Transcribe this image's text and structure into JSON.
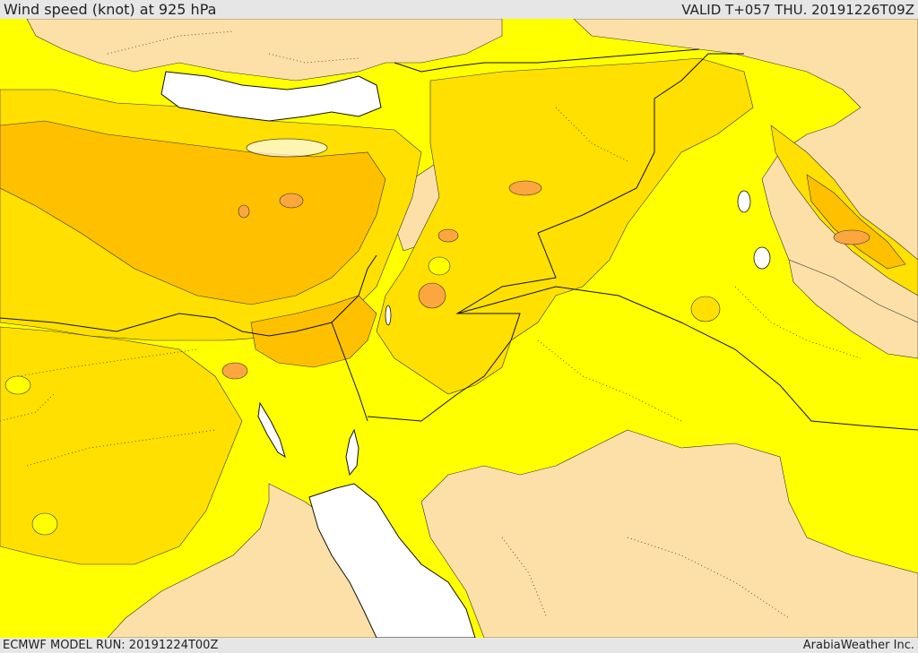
{
  "header": {
    "title": "Wind speed (knot) at 925 hPa",
    "valid": "VALID T+057 THU. 20191226T09Z"
  },
  "footer": {
    "model_run": "ECMWF MODEL RUN: 20191224T00Z",
    "credit": "ArabiaWeather Inc."
  },
  "colors": {
    "bar_background": "#e6e6e6",
    "sea_white": "#ffffff",
    "light_tan": "#fde0a8",
    "yellow": "#ffff00",
    "golden": "#ffe000",
    "orange_light": "#ffc000",
    "orange_dark": "#fca640",
    "outline": "#333333"
  }
}
